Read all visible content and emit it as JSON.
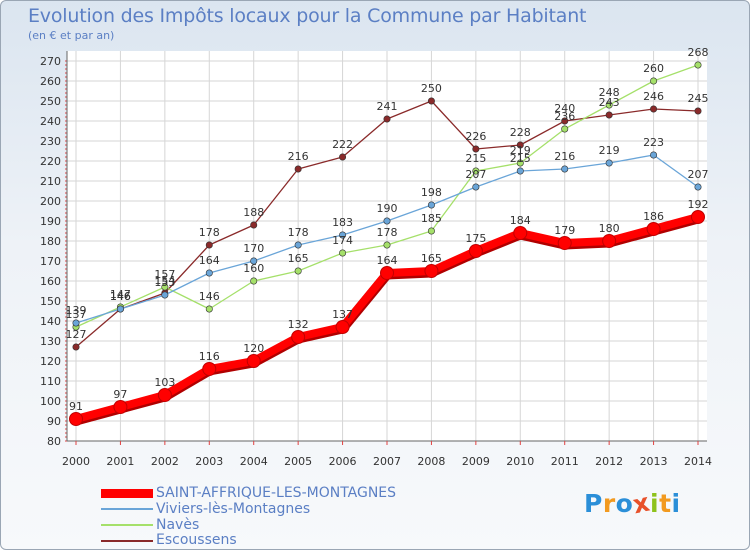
{
  "title": "Evolution des Impôts locaux pour la Commune par Habitant",
  "subtitle": "(en € et par an)",
  "logo": {
    "letters": [
      "P",
      "r",
      "o",
      "x",
      "i",
      "t",
      "i"
    ],
    "colors": [
      "#2b8fd8",
      "#f29a1f",
      "#2b8fd8",
      "#e8512a",
      "#8ec21c",
      "#f29a1f",
      "#2b8fd8"
    ]
  },
  "chart_data": {
    "type": "line",
    "title": "Evolution des Impôts locaux pour la Commune par Habitant",
    "ylabel": "(en € et par an)",
    "xlabel": "",
    "x": [
      "2000",
      "2001",
      "2002",
      "2003",
      "2004",
      "2005",
      "2006",
      "2007",
      "2008",
      "2009",
      "2010",
      "2011",
      "2012",
      "2013",
      "2014"
    ],
    "ylim": [
      80,
      270
    ],
    "yticks": [
      "80",
      "90",
      "100",
      "110",
      "120",
      "130",
      "140",
      "150",
      "160",
      "170",
      "180",
      "190",
      "200",
      "210",
      "220",
      "230",
      "240",
      "250",
      "260",
      "270"
    ],
    "grid": true,
    "legend_position": "bottom-left",
    "series": [
      {
        "name": "SAINT-AFFRIQUE-LES-MONTAGNES",
        "color": "#ff0000",
        "values": [
          91,
          97,
          103,
          116,
          120,
          132,
          137,
          164,
          165,
          175,
          184,
          179,
          180,
          186,
          192
        ]
      },
      {
        "name": "Viviers-lès-Montagnes",
        "color": "#6aa5d8",
        "values": [
          139,
          146,
          153,
          164,
          170,
          178,
          183,
          190,
          198,
          207,
          215,
          216,
          219,
          223,
          207
        ]
      },
      {
        "name": "Navès",
        "color": "#a5e06a",
        "values": [
          137,
          147,
          157,
          146,
          160,
          165,
          174,
          178,
          185,
          215,
          219,
          236,
          248,
          260,
          268
        ]
      },
      {
        "name": "Escoussens",
        "color": "#8a2a2a",
        "values": [
          127,
          146,
          154,
          178,
          188,
          216,
          222,
          241,
          250,
          226,
          228,
          240,
          243,
          246,
          245
        ]
      }
    ]
  }
}
